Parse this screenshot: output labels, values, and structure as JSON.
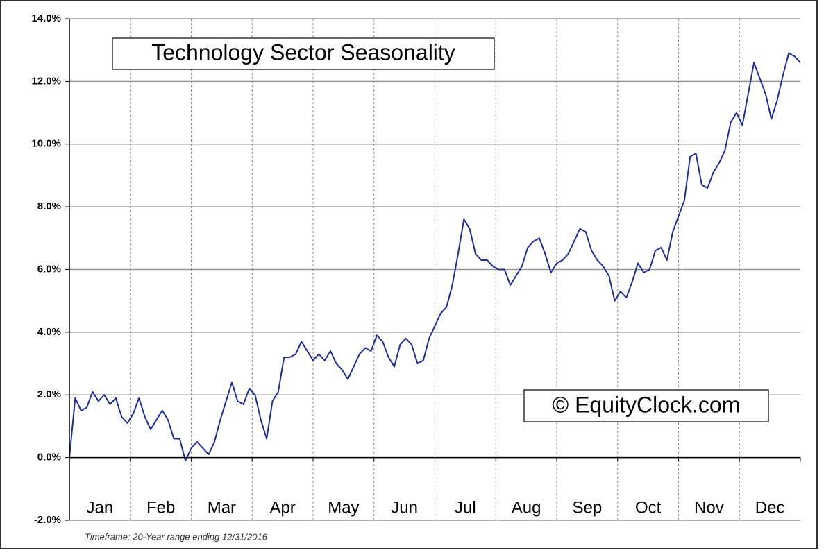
{
  "chart_data": {
    "type": "line",
    "title": "Technology Sector Seasonality",
    "watermark": "© EquityClock.com",
    "footnote": "Timeframe: 20-Year range ending 12/31/2016",
    "categories": [
      "Jan",
      "Feb",
      "Mar",
      "Apr",
      "May",
      "Jun",
      "Jul",
      "Aug",
      "Sep",
      "Oct",
      "Nov",
      "Dec"
    ],
    "xlim": [
      0,
      252
    ],
    "ylim": [
      -2,
      14
    ],
    "yticks": [
      {
        "value": -2,
        "label": "-2.0%"
      },
      {
        "value": 0,
        "label": "0.0%"
      },
      {
        "value": 2,
        "label": "2.0%"
      },
      {
        "value": 4,
        "label": "4.0%"
      },
      {
        "value": 6,
        "label": "6.0%"
      },
      {
        "value": 8,
        "label": "8.0%"
      },
      {
        "value": 10,
        "label": "10.0%"
      },
      {
        "value": 12,
        "label": "12.0%"
      },
      {
        "value": 14,
        "label": "14.0%"
      }
    ],
    "grid": true,
    "x": [
      0,
      2,
      4,
      6,
      8,
      10,
      12,
      14,
      16,
      18,
      20,
      22,
      24,
      26,
      28,
      30,
      32,
      34,
      36,
      38,
      40,
      42,
      44,
      46,
      48,
      50,
      52,
      54,
      56,
      58,
      60,
      62,
      64,
      66,
      68,
      70,
      72,
      74,
      76,
      78,
      80,
      82,
      84,
      86,
      88,
      90,
      92,
      94,
      96,
      98,
      100,
      102,
      104,
      106,
      108,
      110,
      112,
      114,
      116,
      118,
      120,
      122,
      124,
      126,
      128,
      130,
      132,
      134,
      136,
      138,
      140,
      142,
      144,
      146,
      148,
      150,
      152,
      154,
      156,
      158,
      160,
      162,
      164,
      166,
      168,
      170,
      172,
      174,
      176,
      178,
      180,
      182,
      184,
      186,
      188,
      190,
      192,
      194,
      196,
      198,
      200,
      202,
      204,
      206,
      208,
      210,
      212,
      214,
      216,
      218,
      220,
      222,
      224,
      226,
      228,
      230,
      232,
      234,
      236,
      238,
      240,
      242,
      244,
      246,
      248,
      250,
      252
    ],
    "series": [
      {
        "color": "#1f2d96",
        "values": [
          0.0,
          1.9,
          1.5,
          1.6,
          2.1,
          1.8,
          2.0,
          1.7,
          1.9,
          1.3,
          1.1,
          1.4,
          1.9,
          1.3,
          0.9,
          1.2,
          1.5,
          1.2,
          0.6,
          0.6,
          -0.1,
          0.3,
          0.5,
          0.3,
          0.1,
          0.5,
          1.2,
          1.8,
          2.4,
          1.8,
          1.7,
          2.2,
          2.0,
          1.2,
          0.6,
          1.8,
          2.1,
          3.2,
          3.2,
          3.3,
          3.7,
          3.4,
          3.1,
          3.3,
          3.1,
          3.4,
          3.0,
          2.8,
          2.5,
          2.9,
          3.3,
          3.5,
          3.4,
          3.9,
          3.7,
          3.2,
          2.9,
          3.6,
          3.8,
          3.6,
          3.0,
          3.1,
          3.8,
          4.2,
          4.6,
          4.8,
          5.5,
          6.5,
          7.6,
          7.3,
          6.5,
          6.3,
          6.3,
          6.1,
          6.0,
          6.0,
          5.5,
          5.8,
          6.1,
          6.7,
          6.9,
          7.0,
          6.5,
          5.9,
          6.2,
          6.3,
          6.5,
          6.9,
          7.3,
          7.2,
          6.6,
          6.3,
          6.1,
          5.8,
          5.0,
          5.3,
          5.1,
          5.6,
          6.2,
          5.9,
          6.0,
          6.6,
          6.7,
          6.3,
          7.2,
          7.7,
          8.2,
          9.6,
          9.7,
          8.7,
          8.6,
          9.1,
          9.4,
          9.8,
          10.7,
          11.0,
          10.6,
          11.6,
          12.6,
          12.1,
          11.6,
          10.8,
          11.4,
          12.2,
          12.9,
          12.8,
          12.6
        ]
      }
    ]
  }
}
